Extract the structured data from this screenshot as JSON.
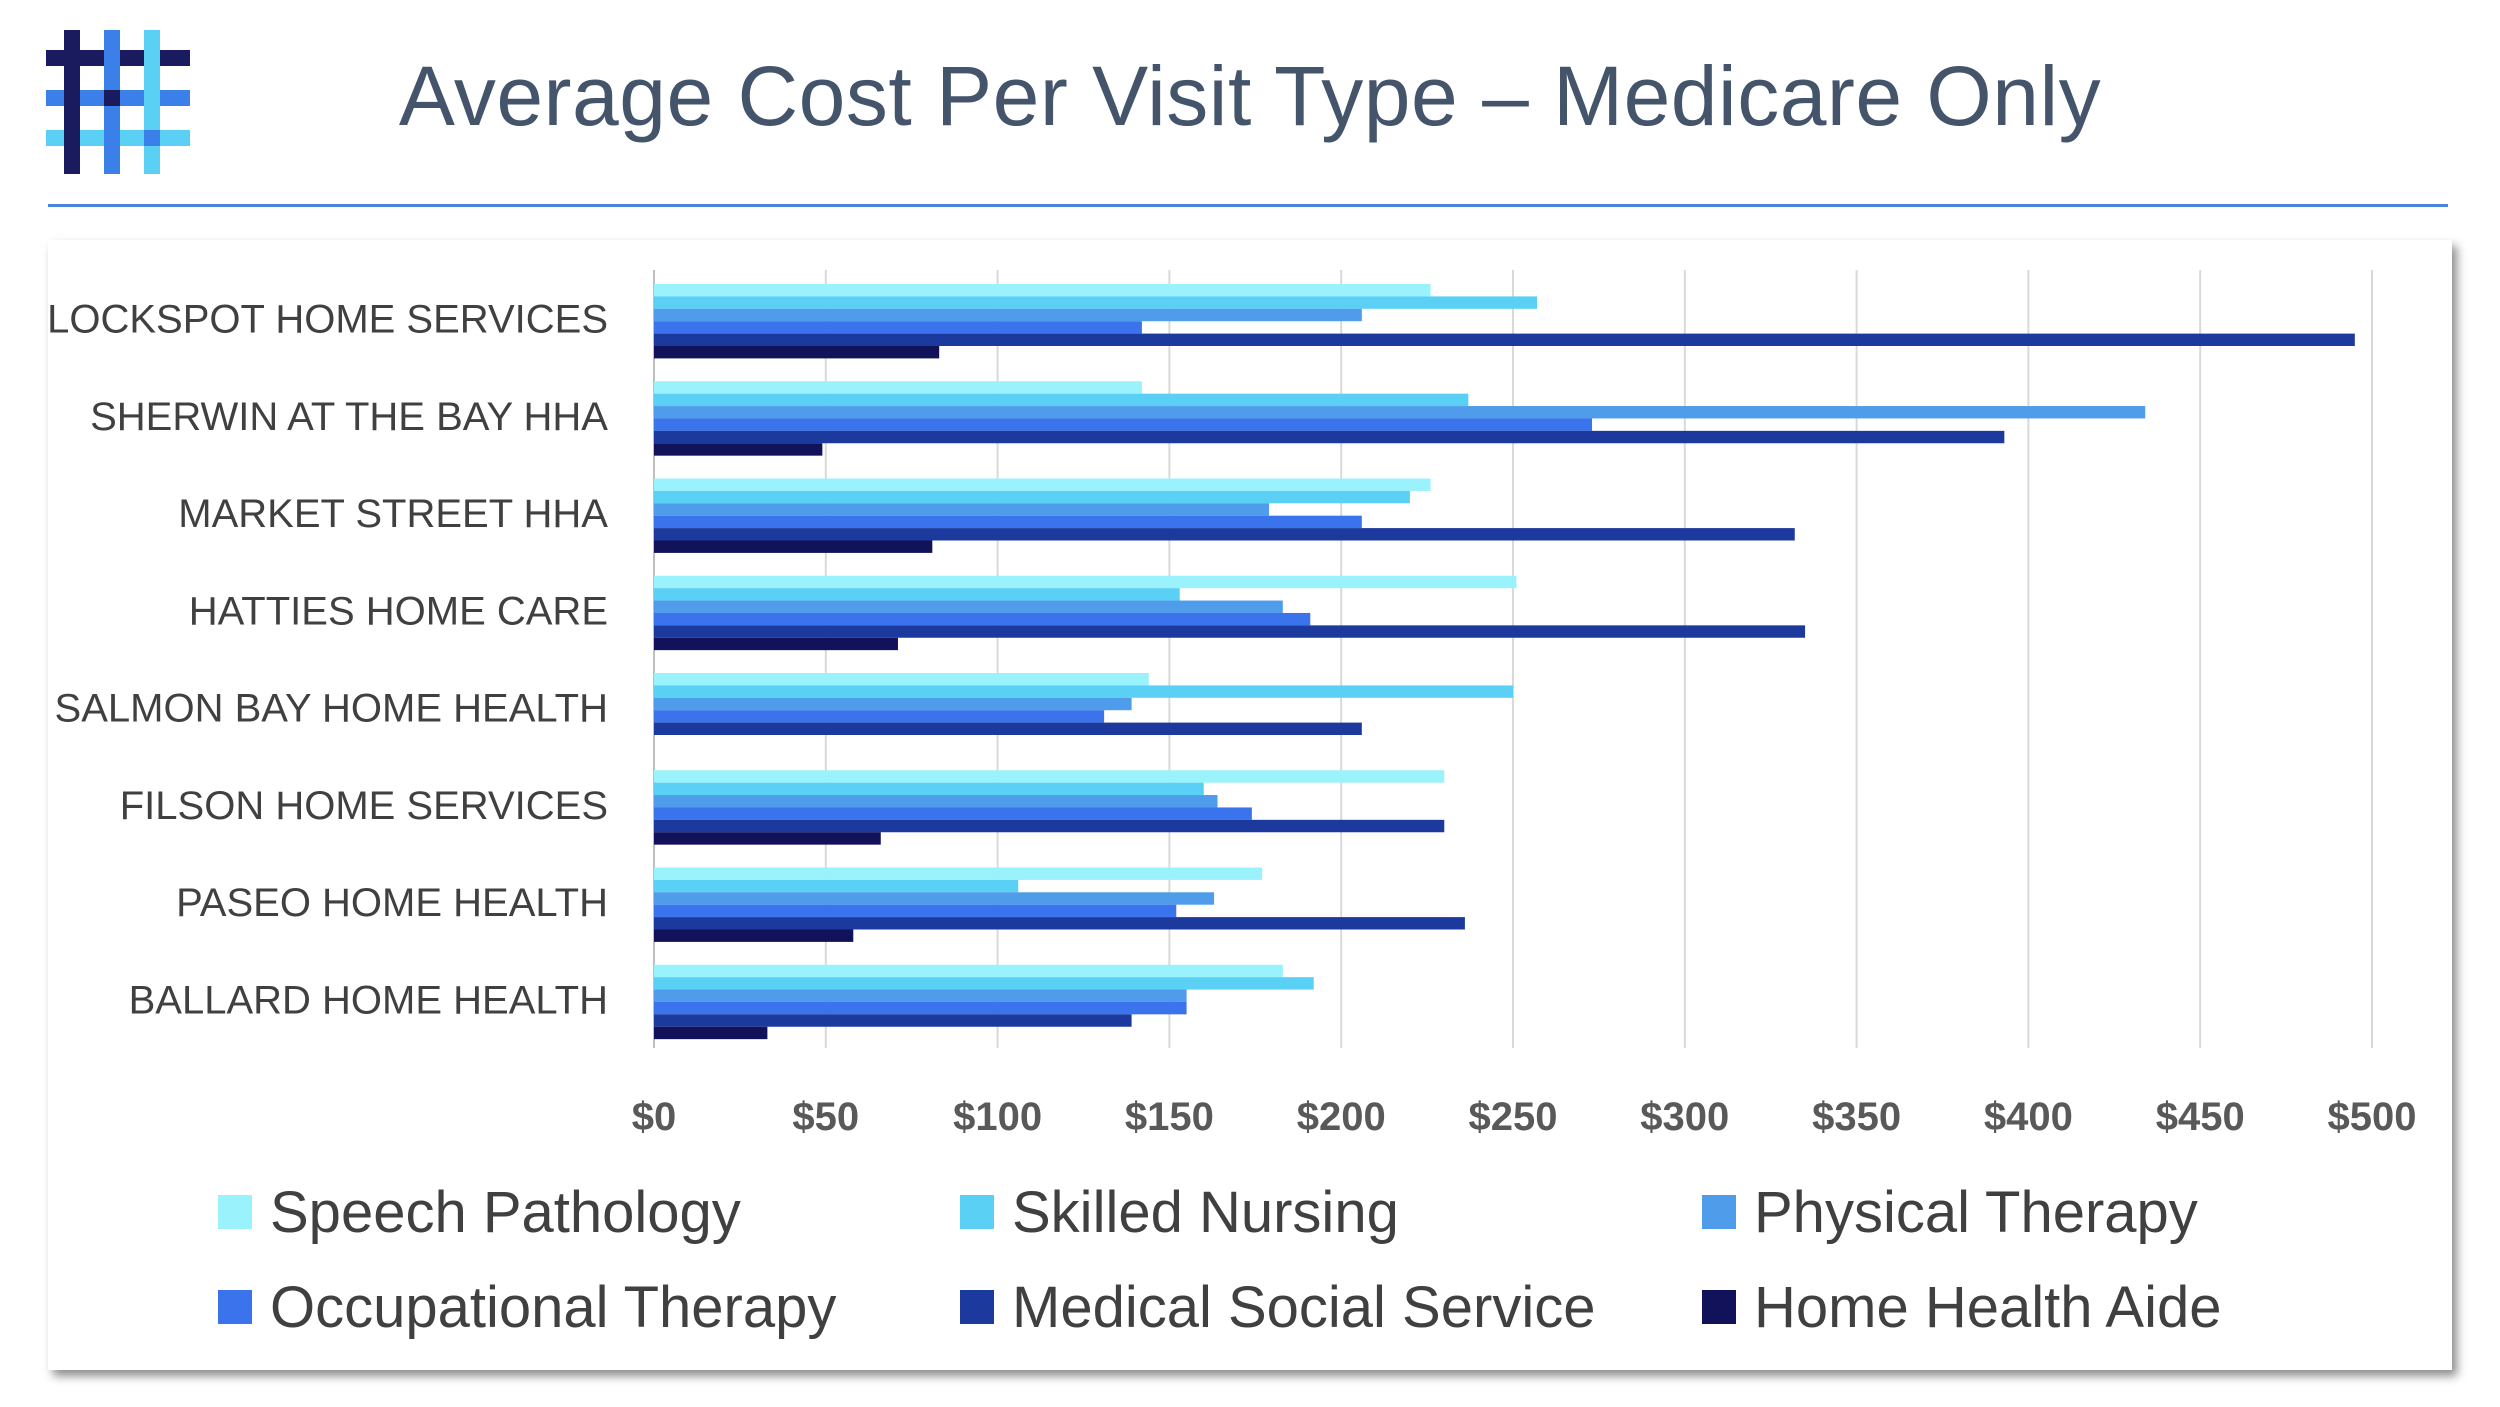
{
  "logo": {
    "name": "hashtag-grid-logo",
    "colors": [
      "#1a1a5e",
      "#3b7fe8",
      "#5bd0f5"
    ]
  },
  "title": "Average Cost Per Visit Type – Medicare Only",
  "chart_data": {
    "type": "bar",
    "orientation": "horizontal",
    "title": "",
    "xlabel": "",
    "ylabel": "",
    "categories": [
      "LOCKSPOT HOME SERVICES",
      "SHERWIN AT THE BAY HHA",
      "MARKET STREET HHA",
      "HATTIES HOME CARE",
      "SALMON BAY HOME HEALTH",
      "FILSON HOME SERVICES",
      "PASEO HOME HEALTH",
      "BALLARD HOME HEALTH"
    ],
    "xlim": [
      0,
      500
    ],
    "x_ticks": [
      "$0",
      "$50",
      "$100",
      "$150",
      "$200",
      "$250",
      "$300",
      "$350",
      "$400",
      "$450",
      "$500"
    ],
    "grid": "vertical",
    "legend_position": "bottom",
    "series": [
      {
        "name": "Speech Pathology",
        "color": "#99f2fc",
        "values": [
          226,
          142,
          226,
          251,
          144,
          230,
          177,
          183
        ]
      },
      {
        "name": "Skilled Nursing",
        "color": "#5bd0f5",
        "values": [
          257,
          237,
          220,
          153,
          250,
          160,
          106,
          192
        ]
      },
      {
        "name": "Physical Therapy",
        "color": "#4e9cea",
        "values": [
          206,
          434,
          179,
          183,
          139,
          164,
          163,
          155
        ]
      },
      {
        "name": "Occupational Therapy",
        "color": "#3b73ec",
        "values": [
          142,
          273,
          206,
          191,
          131,
          174,
          152,
          155
        ]
      },
      {
        "name": "Medical Social Service",
        "color": "#1c3a9e",
        "values": [
          495,
          393,
          332,
          335,
          206,
          230,
          236,
          139
        ]
      },
      {
        "name": "Home Health Aide",
        "color": "#12125a",
        "values": [
          83,
          49,
          81,
          71,
          0,
          66,
          58,
          33
        ]
      }
    ]
  }
}
